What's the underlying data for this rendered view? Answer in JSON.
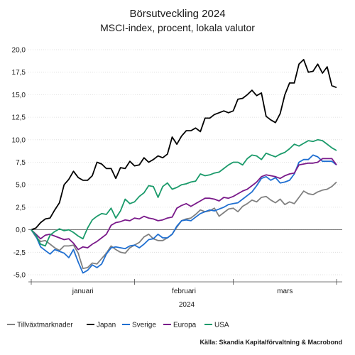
{
  "chart_data": {
    "type": "line",
    "title": "Börsutveckling 2024",
    "subtitle": "MSCI-index, procent, lokala valutor",
    "xlabel": "2024",
    "ylabel": "",
    "ylim": [
      -5,
      20
    ],
    "yticks": [
      "-5,0",
      "-2,5",
      "0,0",
      "2,5",
      "5,0",
      "7,5",
      "10,0",
      "12,5",
      "15,0",
      "17,5",
      "20,0"
    ],
    "xticks": [
      "januari",
      "februari",
      "mars"
    ],
    "grid": true,
    "legend_position": "bottom",
    "x": [
      0,
      1,
      2,
      3,
      4,
      5,
      6,
      7,
      8,
      9,
      10,
      11,
      12,
      13,
      14,
      15,
      16,
      17,
      18,
      19,
      20,
      21,
      22,
      23,
      24,
      25,
      26,
      27,
      28,
      29,
      30,
      31,
      32,
      33,
      34,
      35,
      36,
      37,
      38,
      39,
      40,
      41,
      42,
      43,
      44,
      45,
      46,
      47,
      48,
      49,
      50,
      51,
      52,
      53,
      54,
      55,
      56,
      57,
      58,
      59,
      60,
      61,
      62,
      63,
      64,
      65
    ],
    "series": [
      {
        "name": "Tillväxtmarknader",
        "color": "#808080",
        "values": [
          0,
          -0.8,
          -1.3,
          -1.2,
          -1.6,
          -2.0,
          -2.3,
          -1.8,
          -1.8,
          -1.7,
          -2.6,
          -4.3,
          -4.2,
          -3.7,
          -3.8,
          -3.2,
          -2.6,
          -1.8,
          -2.2,
          -2.5,
          -2.6,
          -2.0,
          -1.7,
          -1.4,
          -0.8,
          -0.5,
          -1.0,
          -1.2,
          -1.2,
          -0.9,
          -0.5,
          0.3,
          1.0,
          1.2,
          1.3,
          1.7,
          2.2,
          2.0,
          2.1,
          2.4,
          1.5,
          1.9,
          2.3,
          2.4,
          2.0,
          2.6,
          2.9,
          3.3,
          3.1,
          3.6,
          3.7,
          3.3,
          3.0,
          3.4,
          2.8,
          3.1,
          2.9,
          3.6,
          4.3,
          4.0,
          3.9,
          4.2,
          4.4,
          4.5,
          4.8,
          5.3
        ]
      },
      {
        "name": "Japan",
        "color": "#000000",
        "values": [
          0,
          0.2,
          0.8,
          1.2,
          1.3,
          2.2,
          3.0,
          5.0,
          5.6,
          6.5,
          5.8,
          5.5,
          5.5,
          6.0,
          7.5,
          7.3,
          6.8,
          6.8,
          5.7,
          6.9,
          6.8,
          7.6,
          7.1,
          7.2,
          8.0,
          7.5,
          7.8,
          8.2,
          8.0,
          8.4,
          10.3,
          9.5,
          10.4,
          11.0,
          11.0,
          11.3,
          10.9,
          12.4,
          12.4,
          12.8,
          13.0,
          13.2,
          13.0,
          13.2,
          14.5,
          14.6,
          15.0,
          15.5,
          14.9,
          15.2,
          12.6,
          12.2,
          11.9,
          12.9,
          15.0,
          16.3,
          16.3,
          18.4,
          18.9,
          17.5,
          17.6,
          18.4,
          17.4,
          18.1,
          16.0,
          15.8
        ]
      },
      {
        "name": "Sverige",
        "color": "#1f6fd1",
        "values": [
          0,
          -0.7,
          -1.9,
          -2.3,
          -2.7,
          -2.2,
          -2.4,
          -2.6,
          -3.1,
          -2.2,
          -3.6,
          -4.8,
          -4.5,
          -3.9,
          -4.2,
          -3.8,
          -2.7,
          -2.0,
          -1.9,
          -2.0,
          -2.1,
          -1.8,
          -1.7,
          -2.0,
          -1.6,
          -1.1,
          -1.0,
          -0.5,
          -0.9,
          -0.9,
          -0.5,
          0.4,
          1.0,
          1.1,
          1.0,
          1.4,
          1.8,
          2.0,
          2.2,
          2.1,
          2.3,
          2.5,
          2.8,
          2.9,
          3.0,
          3.4,
          3.8,
          4.2,
          4.9,
          5.7,
          5.9,
          5.5,
          5.8,
          5.2,
          5.3,
          5.5,
          6.2,
          7.5,
          7.8,
          7.8,
          8.3,
          8.1,
          7.6,
          7.6,
          7.6,
          7.2
        ]
      },
      {
        "name": "Europa",
        "color": "#7a1a8a",
        "values": [
          0,
          -0.5,
          -1.0,
          -0.6,
          -0.5,
          -0.7,
          -0.9,
          -1.1,
          -1.0,
          -1.5,
          -2.2,
          -1.9,
          -2.0,
          -1.6,
          -1.3,
          -0.9,
          -0.5,
          0.5,
          0.8,
          0.9,
          1.1,
          1.0,
          1.3,
          1.2,
          1.5,
          1.3,
          1.2,
          1.0,
          1.1,
          1.3,
          1.4,
          2.4,
          2.7,
          2.9,
          2.6,
          2.9,
          3.2,
          3.5,
          3.5,
          3.4,
          3.2,
          3.6,
          3.5,
          3.7,
          4.0,
          4.3,
          4.5,
          4.9,
          5.3,
          5.9,
          6.1,
          6.0,
          5.9,
          5.7,
          6.0,
          6.2,
          6.3,
          7.2,
          7.3,
          7.4,
          7.4,
          7.5,
          7.9,
          7.9,
          7.9,
          7.2
        ]
      },
      {
        "name": "USA",
        "color": "#1a9a6a",
        "values": [
          0,
          -0.6,
          -1.6,
          -1.8,
          -0.6,
          -0.2,
          0.1,
          -0.1,
          0.0,
          -0.3,
          -0.7,
          -1.0,
          0.2,
          1.1,
          1.5,
          1.8,
          1.7,
          2.4,
          1.3,
          2.1,
          3.4,
          2.9,
          3.1,
          3.7,
          4.1,
          4.9,
          4.8,
          3.6,
          4.8,
          5.2,
          4.5,
          4.7,
          5.0,
          5.1,
          5.3,
          5.4,
          6.2,
          6.0,
          6.1,
          6.3,
          6.4,
          6.8,
          7.2,
          7.5,
          7.5,
          7.2,
          7.9,
          8.3,
          8.2,
          7.8,
          8.5,
          8.3,
          8.1,
          8.4,
          8.6,
          9.0,
          9.5,
          9.3,
          9.6,
          9.9,
          9.8,
          10.0,
          9.9,
          9.5,
          9.1,
          8.8
        ]
      }
    ]
  },
  "source": "Källa: Skandia Kapitalförvaltning & Macrobond"
}
